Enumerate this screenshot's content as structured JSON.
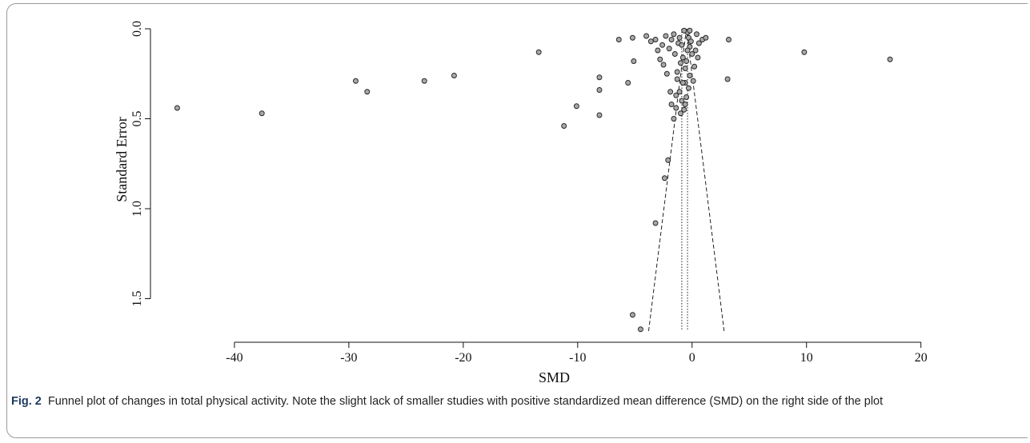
{
  "caption": {
    "label": "Fig. 2",
    "text": "Funnel plot of changes in total physical activity. Note the slight lack of smaller studies with positive standardized mean difference (SMD) on the right side of the plot"
  },
  "chart_data": {
    "type": "scatter",
    "title": "",
    "xlabel": "SMD",
    "ylabel": "Standard Error",
    "xlim": [
      -46.5,
      21
    ],
    "ylim": [
      0,
      1.72
    ],
    "y_inverted": true,
    "x_ticks": [
      -40,
      -30,
      -20,
      -10,
      0,
      10,
      20
    ],
    "y_ticks": [
      0.0,
      0.5,
      1.0,
      1.5
    ],
    "x_tick_labels": [
      "-40",
      "-30",
      "-20",
      "-10",
      "0",
      "10",
      "20"
    ],
    "y_tick_labels": [
      "0.0",
      "0.5",
      "1.0",
      "1.5"
    ],
    "grid": false,
    "funnel": {
      "apex": [
        -0.5,
        0.0
      ],
      "bottom_left": [
        -3.8,
        1.68
      ],
      "bottom_right": [
        2.8,
        1.68
      ],
      "center_lines_x": [
        -0.9,
        -0.4
      ]
    },
    "points": [
      [
        -45,
        0.44
      ],
      [
        -37.6,
        0.47
      ],
      [
        -29.4,
        0.29
      ],
      [
        -28.4,
        0.35
      ],
      [
        -23.4,
        0.29
      ],
      [
        -20.8,
        0.26
      ],
      [
        -13.4,
        0.13
      ],
      [
        -11.2,
        0.54
      ],
      [
        -10.1,
        0.43
      ],
      [
        -8.1,
        0.27
      ],
      [
        -8.1,
        0.34
      ],
      [
        -8.1,
        0.48
      ],
      [
        -6.4,
        0.06
      ],
      [
        -5.6,
        0.3
      ],
      [
        -5.2,
        0.05
      ],
      [
        -5.1,
        0.18
      ],
      [
        -4.0,
        0.04
      ],
      [
        -3.6,
        0.07
      ],
      [
        -3.2,
        0.06
      ],
      [
        -2.8,
        0.17
      ],
      [
        -2.5,
        0.2
      ],
      [
        -2.2,
        0.25
      ],
      [
        -2.0,
        0.11
      ],
      [
        -1.8,
        0.42
      ],
      [
        -1.6,
        0.5
      ],
      [
        -1.4,
        0.44
      ],
      [
        -1.3,
        0.28
      ],
      [
        -1.1,
        0.35
      ],
      [
        -0.9,
        0.4
      ],
      [
        -0.7,
        0.45
      ],
      [
        -0.6,
        0.3
      ],
      [
        -0.5,
        0.38
      ],
      [
        -0.4,
        0.02
      ],
      [
        -0.3,
        0.05
      ],
      [
        -0.2,
        0.1
      ],
      [
        0.0,
        0.14
      ],
      [
        0.3,
        0.12
      ],
      [
        0.6,
        0.08
      ],
      [
        0.9,
        0.06
      ],
      [
        1.2,
        0.05
      ],
      [
        3.2,
        0.06
      ],
      [
        3.1,
        0.28
      ],
      [
        9.8,
        0.13
      ],
      [
        17.3,
        0.17
      ],
      [
        -2.4,
        0.83
      ],
      [
        -2.1,
        0.73
      ],
      [
        -3.2,
        1.08
      ],
      [
        -5.2,
        1.59
      ],
      [
        -4.5,
        1.67
      ],
      [
        -1.6,
        0.03
      ],
      [
        -1.2,
        0.08
      ],
      [
        -0.8,
        0.16
      ],
      [
        -0.6,
        0.22
      ],
      [
        -0.3,
        0.33
      ],
      [
        0.1,
        0.29
      ],
      [
        -0.2,
        0.26
      ],
      [
        -1.0,
        0.19
      ],
      [
        -1.5,
        0.14
      ],
      [
        -0.9,
        0.09
      ],
      [
        -0.1,
        0.07
      ],
      [
        0.4,
        0.03
      ],
      [
        -0.7,
        0.01
      ],
      [
        -1.9,
        0.35
      ],
      [
        -1.3,
        0.24
      ],
      [
        -0.5,
        0.18
      ],
      [
        0.2,
        0.21
      ],
      [
        -2.6,
        0.09
      ],
      [
        -1.8,
        0.06
      ],
      [
        -0.2,
        0.01
      ],
      [
        0.5,
        0.16
      ],
      [
        -0.4,
        0.12
      ],
      [
        -1.1,
        0.05
      ],
      [
        -2.3,
        0.04
      ],
      [
        -3.0,
        0.12
      ],
      [
        -0.8,
        0.3
      ],
      [
        -1.4,
        0.37
      ],
      [
        -0.6,
        0.42
      ],
      [
        -1.0,
        0.47
      ]
    ]
  }
}
